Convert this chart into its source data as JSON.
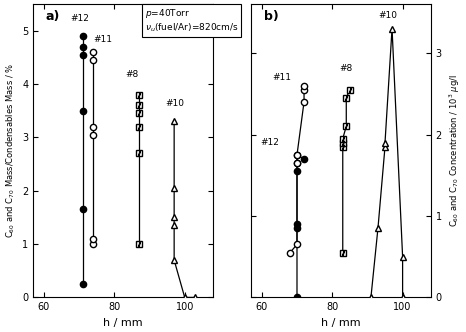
{
  "panel_a": {
    "title": "a)",
    "ylabel": "C$_{60}$ and C$_{70}$ Mass/Condensables Mass / %",
    "xlabel": "h / mm",
    "xlim": [
      57,
      108
    ],
    "ylim": [
      0,
      5.5
    ],
    "yticks": [
      0,
      1,
      2,
      3,
      4,
      5
    ],
    "xticks": [
      60,
      80,
      100
    ],
    "series": [
      {
        "id": "12_filled",
        "annotation": "#12",
        "ann_x": 67.5,
        "ann_y": 5.15,
        "x": [
          71,
          71,
          71,
          71,
          71,
          71
        ],
        "y": [
          0.25,
          1.65,
          3.5,
          4.55,
          4.7,
          4.9
        ],
        "marker": "o",
        "filled": true
      },
      {
        "id": "11_open",
        "annotation": "#11",
        "ann_x": 74.0,
        "ann_y": 4.75,
        "x": [
          74,
          74,
          74,
          74,
          74,
          74
        ],
        "y": [
          1.0,
          1.1,
          3.05,
          3.2,
          4.45,
          4.6
        ],
        "marker": "o",
        "filled": false
      },
      {
        "id": "8_square",
        "annotation": "#8",
        "ann_x": 83.0,
        "ann_y": 4.1,
        "x": [
          87,
          87,
          87,
          87,
          87,
          87
        ],
        "y": [
          1.0,
          2.7,
          3.2,
          3.45,
          3.6,
          3.8
        ],
        "marker": "sq",
        "filled": false
      },
      {
        "id": "10_tri",
        "annotation": "#10",
        "ann_x": 94.5,
        "ann_y": 3.55,
        "x": [
          97,
          97,
          97,
          97,
          97,
          100,
          103
        ],
        "y": [
          3.3,
          2.05,
          1.5,
          1.35,
          0.7,
          0.0,
          0.0
        ],
        "marker": "^",
        "filled": false
      }
    ]
  },
  "panel_b": {
    "title": "b)",
    "ylabel": "C$_{60}$ and C$_{70}$ Concentration / 10$^{3}$ $\\mu$g/l",
    "xlabel": "h / mm",
    "xlim": [
      57,
      108
    ],
    "ylim": [
      0,
      3.6
    ],
    "yticks": [
      0,
      1,
      2,
      3
    ],
    "xticks": [
      60,
      80,
      100
    ],
    "series": [
      {
        "id": "12_filled",
        "annotation": "#12",
        "ann_x": 59.5,
        "ann_y": 1.85,
        "x": [
          70,
          70,
          70,
          70,
          70,
          70,
          72
        ],
        "y": [
          0.0,
          0.85,
          0.9,
          1.55,
          1.65,
          1.75,
          1.7
        ],
        "marker": "o",
        "filled": true
      },
      {
        "id": "11_open",
        "annotation": "#11",
        "ann_x": 63.0,
        "ann_y": 2.65,
        "x": [
          68,
          70,
          70,
          70,
          72,
          72,
          72
        ],
        "y": [
          0.55,
          0.65,
          1.65,
          1.75,
          2.4,
          2.55,
          2.6
        ],
        "marker": "o",
        "filled": false
      },
      {
        "id": "8_square",
        "annotation": "#8",
        "ann_x": 82.0,
        "ann_y": 2.75,
        "x": [
          83,
          83,
          83,
          83,
          84,
          84,
          85
        ],
        "y": [
          0.55,
          1.85,
          1.9,
          1.95,
          2.1,
          2.45,
          2.55
        ],
        "marker": "sq",
        "filled": false
      },
      {
        "id": "10_tri",
        "annotation": "#10",
        "ann_x": 93.0,
        "ann_y": 3.4,
        "x": [
          91,
          93,
          95,
          95,
          97,
          100,
          100
        ],
        "y": [
          0.0,
          0.85,
          1.85,
          1.9,
          3.3,
          0.5,
          0.0
        ],
        "marker": "^",
        "filled": false
      }
    ]
  },
  "annotation_box_line1": "$p$=40Torr",
  "annotation_box_line2": "$\\nu_{u}$(fuel/Ar)=820cm/s",
  "marker_size": 4.5,
  "line_width": 0.9
}
